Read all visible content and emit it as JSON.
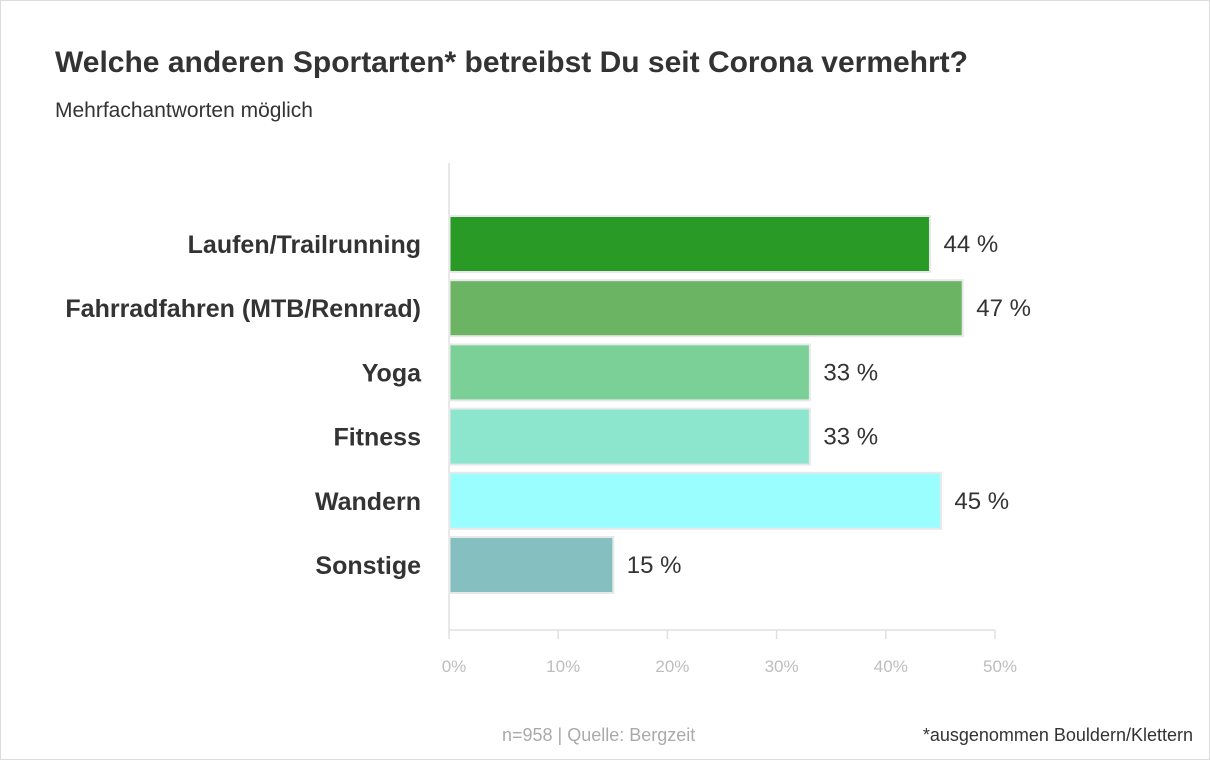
{
  "chart_data": {
    "type": "bar",
    "orientation": "horizontal",
    "title": "Welche anderen Sportarten* betreibst Du seit Corona vermehrt?",
    "subtitle": "Mehrfachantworten möglich",
    "categories": [
      "Laufen/Trailrunning",
      "Fahrradfahren (MTB/Rennrad)",
      "Yoga",
      "Fitness",
      "Wandern",
      "Sonstige"
    ],
    "values": [
      44,
      47,
      33,
      33,
      45,
      15
    ],
    "value_labels": [
      "44 %",
      "47 %",
      "33 %",
      "33 %",
      "45 %",
      "15 %"
    ],
    "colors": [
      "#2a9a27",
      "#6bb464",
      "#7bd097",
      "#8ce6ce",
      "#9bfefe",
      "#86bfbf"
    ],
    "xlim": [
      0,
      50
    ],
    "xticks": [
      0,
      10,
      20,
      30,
      40,
      50
    ],
    "xtick_labels": [
      "0%",
      "10%",
      "20%",
      "30%",
      "40%",
      "50%"
    ],
    "xlabel": "",
    "ylabel": "",
    "grid": false,
    "legend": "none"
  },
  "footer": {
    "source": "n=958 | Quelle: Bergzeit",
    "note": "*ausgenommen Bouldern/Klettern"
  },
  "colors": {
    "text": "#333333",
    "muted": "#aaaaaa",
    "axis": "#e0e0e0"
  }
}
